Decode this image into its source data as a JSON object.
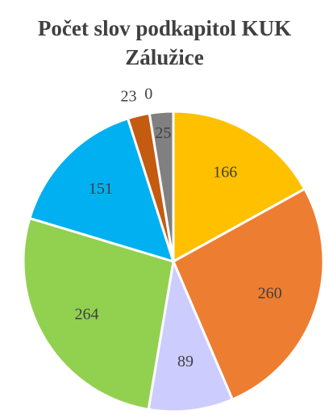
{
  "chart_data": {
    "type": "pie",
    "title": "Počet slov podkapitol KUK Zálužice",
    "values": [
      166,
      260,
      89,
      264,
      151,
      23,
      0,
      25
    ],
    "colors": [
      "#ffc000",
      "#ed7d31",
      "#ccccff",
      "#92d050",
      "#00b0f0",
      "#c55a11",
      "#7030a0",
      "#808080"
    ]
  }
}
